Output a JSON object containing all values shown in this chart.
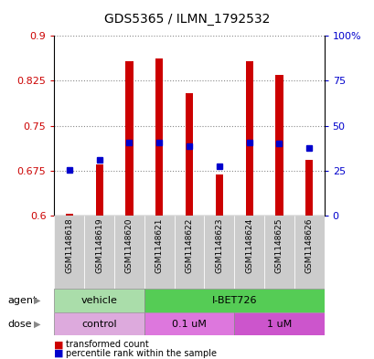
{
  "title": "GDS5365 / ILMN_1792532",
  "samples": [
    "GSM1148618",
    "GSM1148619",
    "GSM1148620",
    "GSM1148621",
    "GSM1148622",
    "GSM1148623",
    "GSM1148624",
    "GSM1148625",
    "GSM1148626"
  ],
  "bar_values": [
    0.602,
    0.685,
    0.858,
    0.862,
    0.805,
    0.668,
    0.857,
    0.835,
    0.693
  ],
  "bar_base": 0.6,
  "percentile_values": [
    0.676,
    0.693,
    0.722,
    0.722,
    0.716,
    0.682,
    0.722,
    0.72,
    0.712
  ],
  "bar_color": "#cc0000",
  "percentile_color": "#0000cc",
  "ylim_left": [
    0.6,
    0.9
  ],
  "ylim_right": [
    0,
    100
  ],
  "yticks_left": [
    0.6,
    0.675,
    0.75,
    0.825,
    0.9
  ],
  "yticks_right": [
    0,
    25,
    50,
    75,
    100
  ],
  "ytick_labels_left": [
    "0.6",
    "0.675",
    "0.75",
    "0.825",
    "0.9"
  ],
  "ytick_labels_right": [
    "0",
    "25",
    "50",
    "75",
    "100%"
  ],
  "grid_color": "#888888",
  "outer_bg": "#ffffff",
  "agent_vehicle_color": "#aaddaa",
  "agent_ibet_color": "#55cc55",
  "dose_control_color": "#ddaadd",
  "dose_01_color": "#dd77dd",
  "dose_1_color": "#cc55cc",
  "legend_red": "transformed count",
  "legend_blue": "percentile rank within the sample",
  "bar_width": 0.25,
  "tick_label_color_left": "#cc0000",
  "tick_label_color_right": "#0000cc",
  "xlim": [
    -0.5,
    8.5
  ]
}
